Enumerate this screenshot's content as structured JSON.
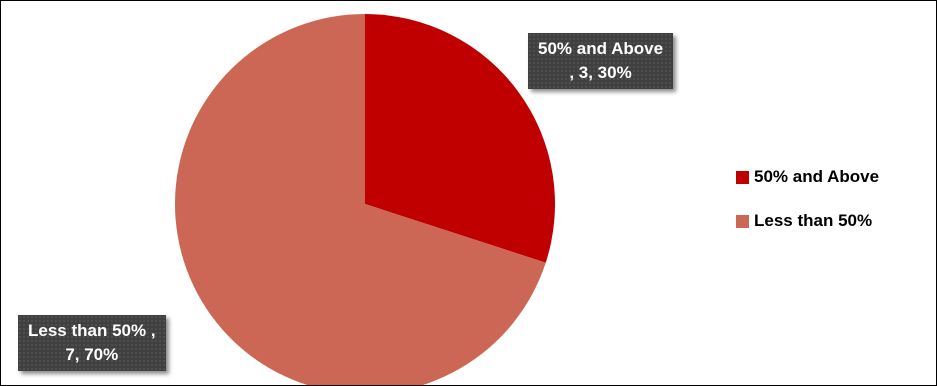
{
  "chart_data": {
    "type": "pie",
    "start_angle_deg": 0,
    "slices": [
      {
        "name": "50% and Above",
        "value": 3,
        "percent": 30,
        "color": "#C00000",
        "label_line1": "50% and Above",
        "label_line2": ", 3, 30%"
      },
      {
        "name": "Less than 50%",
        "value": 7,
        "percent": 70,
        "color": "#CC6655",
        "label_line1": "Less than 50% ,",
        "label_line2": "7, 70%"
      }
    ],
    "legend": {
      "placement": "right",
      "items": [
        "50% and Above",
        "Less than 50%"
      ]
    }
  }
}
